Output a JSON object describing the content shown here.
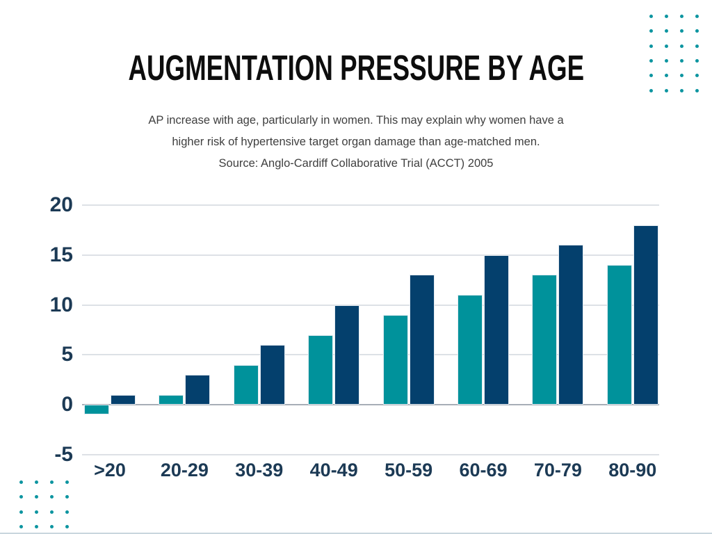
{
  "page": {
    "background": "#ffffff",
    "bottom_rule_color": "#c9d6de"
  },
  "decorations": {
    "dot_color": "#0d95a0",
    "top_right_grid": {
      "rows": 6,
      "cols": 4
    },
    "bottom_left_grid": {
      "rows": 4,
      "cols": 4
    }
  },
  "chart_data": {
    "type": "bar",
    "title": "AUGMENTATION PRESSURE BY AGE",
    "subtitle_lines": [
      "AP increase with age, particularly in women. This may explain why women have a",
      "higher risk of hypertensive target organ damage than age-matched men.",
      "Source: Anglo-Cardiff Collaborative Trial (ACCT) 2005"
    ],
    "categories": [
      ">20",
      "20-29",
      "30-39",
      "40-49",
      "50-59",
      "60-69",
      "70-79",
      "80-90"
    ],
    "series": [
      {
        "name": "teal",
        "color": "#00929b",
        "values": [
          -1,
          1,
          4,
          7,
          9,
          11,
          13,
          14
        ]
      },
      {
        "name": "navy",
        "color": "#04406d",
        "values": [
          1,
          3,
          6,
          10,
          13,
          15,
          16,
          18
        ]
      }
    ],
    "yticks": [
      20,
      15,
      10,
      5,
      0,
      -5
    ],
    "ylim": [
      -5,
      20
    ],
    "xlabel": "",
    "ylabel": "",
    "grid": true,
    "legend": "none",
    "colors": {
      "gridline": "#dde1e6",
      "zero_line": "#a7aeb6",
      "tick_label": "#1c3a55",
      "title": "#0d0d0d",
      "subtitle": "#3f3f3f"
    }
  }
}
